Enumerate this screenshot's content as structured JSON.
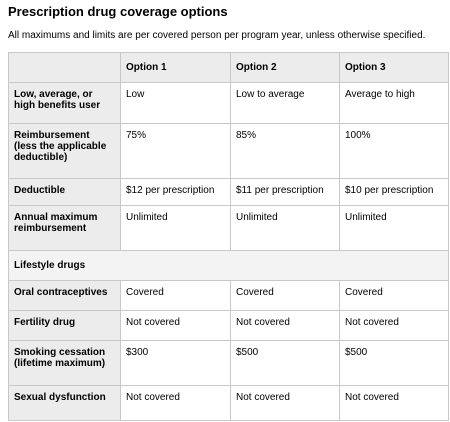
{
  "header": {
    "title": "Prescription drug coverage options",
    "subtitle": "All maximums and limits are per covered person per program year, unless otherwise specified."
  },
  "table": {
    "columns": [
      "Option 1",
      "Option 2",
      "Option 3"
    ],
    "rows": [
      {
        "label": "Low, average, or high benefits user",
        "cells": [
          "Low",
          "Low to average",
          "Average to high"
        ]
      },
      {
        "label": "Reimbursement (less the applicable deductible)",
        "cells": [
          "75%",
          "85%",
          "100%"
        ]
      },
      {
        "label": "Deductible",
        "cells": [
          "$12 per prescription",
          "$11 per prescription",
          "$10 per prescription"
        ]
      },
      {
        "label": "Annual maximum reimbursement",
        "cells": [
          "Unlimited",
          "Unlimited",
          "Unlimited"
        ]
      },
      {
        "section": "Lifestyle drugs"
      },
      {
        "label": "Oral contraceptives",
        "cells": [
          "Covered",
          "Covered",
          "Covered"
        ]
      },
      {
        "label": "Fertility drug",
        "cells": [
          "Not covered",
          "Not covered",
          "Not covered"
        ]
      },
      {
        "label": "Smoking cessation (lifetime maximum)",
        "cells": [
          "$300",
          "$500",
          "$500"
        ]
      },
      {
        "label": "Sexual dysfunction",
        "cells": [
          "Not covered",
          "Not covered",
          "Not covered"
        ]
      }
    ]
  }
}
